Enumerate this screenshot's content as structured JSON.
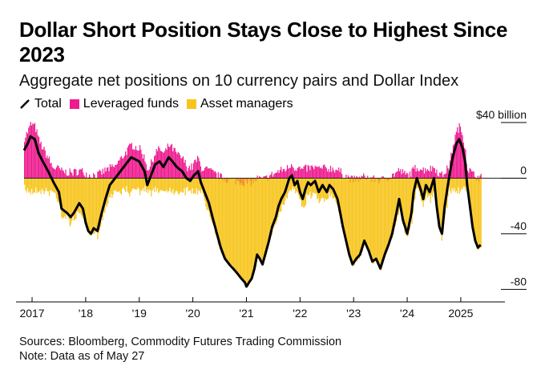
{
  "title": "Dollar Short Position Stays Close to Highest Since 2023",
  "subtitle": "Aggregate net positions on 10 currency pairs and Dollar Index",
  "legend": {
    "total": "Total",
    "leveraged": "Leveraged funds",
    "asset": "Asset managers"
  },
  "footer": {
    "sources": "Sources: Bloomberg, Commodity Futures Trading Commission",
    "note": "Note: Data as of May 27"
  },
  "colors": {
    "total": "#000000",
    "leveraged_pos": "#ee1b8f",
    "leveraged_neg": "#f08a1c",
    "asset": "#f7c51d",
    "zero_line": "#222222",
    "axis": "#000000"
  },
  "chart_data": {
    "type": "bar",
    "title": "Dollar Short Position Stays Close to Highest Since 2023",
    "subtitle": "Aggregate net positions on 10 currency pairs and Dollar Index",
    "ylabel": "$ billion",
    "ylim": [
      -85,
      40
    ],
    "yticks": [
      {
        "value": 40,
        "label": "$40 billion"
      },
      {
        "value": 0,
        "label": "0"
      },
      {
        "value": -40,
        "label": "-40"
      },
      {
        "value": -80,
        "label": "-80"
      }
    ],
    "xlim": [
      2016.85,
      2025.45
    ],
    "xticks": [
      {
        "value": 2017,
        "label": "2017"
      },
      {
        "value": 2018,
        "label": "'18"
      },
      {
        "value": 2019,
        "label": "'19"
      },
      {
        "value": 2020,
        "label": "'20"
      },
      {
        "value": 2021,
        "label": "'21"
      },
      {
        "value": 2022,
        "label": "'22"
      },
      {
        "value": 2023,
        "label": "'23"
      },
      {
        "value": 2024,
        "label": "'24"
      },
      {
        "value": 2025,
        "label": "2025"
      }
    ],
    "series_note": "Stacked weekly bars of leveraged funds and asset managers; line shows total. Values approximated from chart.",
    "total": [
      [
        2016.85,
        20
      ],
      [
        2016.92,
        25
      ],
      [
        2016.97,
        30
      ],
      [
        2017.05,
        28
      ],
      [
        2017.12,
        18
      ],
      [
        2017.2,
        12
      ],
      [
        2017.3,
        5
      ],
      [
        2017.4,
        -3
      ],
      [
        2017.5,
        -10
      ],
      [
        2017.55,
        -22
      ],
      [
        2017.65,
        -25
      ],
      [
        2017.72,
        -28
      ],
      [
        2017.78,
        -25
      ],
      [
        2017.88,
        -18
      ],
      [
        2017.95,
        -22
      ],
      [
        2018.0,
        -32
      ],
      [
        2018.05,
        -38
      ],
      [
        2018.1,
        -40
      ],
      [
        2018.15,
        -36
      ],
      [
        2018.22,
        -38
      ],
      [
        2018.3,
        -25
      ],
      [
        2018.37,
        -15
      ],
      [
        2018.45,
        -5
      ],
      [
        2018.55,
        0
      ],
      [
        2018.65,
        5
      ],
      [
        2018.75,
        10
      ],
      [
        2018.85,
        15
      ],
      [
        2019.0,
        12
      ],
      [
        2019.1,
        5
      ],
      [
        2019.15,
        -5
      ],
      [
        2019.2,
        0
      ],
      [
        2019.3,
        10
      ],
      [
        2019.38,
        12
      ],
      [
        2019.45,
        8
      ],
      [
        2019.55,
        15
      ],
      [
        2019.62,
        12
      ],
      [
        2019.7,
        8
      ],
      [
        2019.8,
        5
      ],
      [
        2019.88,
        0
      ],
      [
        2019.95,
        -2
      ],
      [
        2020.02,
        2
      ],
      [
        2020.1,
        5
      ],
      [
        2020.15,
        -3
      ],
      [
        2020.22,
        -10
      ],
      [
        2020.3,
        -18
      ],
      [
        2020.38,
        -30
      ],
      [
        2020.45,
        -40
      ],
      [
        2020.52,
        -50
      ],
      [
        2020.6,
        -58
      ],
      [
        2020.68,
        -62
      ],
      [
        2020.75,
        -65
      ],
      [
        2020.82,
        -68
      ],
      [
        2020.9,
        -72
      ],
      [
        2020.97,
        -75
      ],
      [
        2021.0,
        -78
      ],
      [
        2021.05,
        -75
      ],
      [
        2021.1,
        -72
      ],
      [
        2021.15,
        -65
      ],
      [
        2021.2,
        -55
      ],
      [
        2021.25,
        -58
      ],
      [
        2021.3,
        -62
      ],
      [
        2021.35,
        -55
      ],
      [
        2021.42,
        -45
      ],
      [
        2021.48,
        -35
      ],
      [
        2021.55,
        -28
      ],
      [
        2021.6,
        -20
      ],
      [
        2021.65,
        -15
      ],
      [
        2021.72,
        -10
      ],
      [
        2021.8,
        0
      ],
      [
        2021.85,
        2
      ],
      [
        2021.9,
        -5
      ],
      [
        2021.95,
        -2
      ],
      [
        2022.0,
        -10
      ],
      [
        2022.05,
        -15
      ],
      [
        2022.1,
        -8
      ],
      [
        2022.15,
        -3
      ],
      [
        2022.2,
        -5
      ],
      [
        2022.28,
        -2
      ],
      [
        2022.35,
        -10
      ],
      [
        2022.42,
        -5
      ],
      [
        2022.5,
        -10
      ],
      [
        2022.55,
        -5
      ],
      [
        2022.62,
        -8
      ],
      [
        2022.7,
        -15
      ],
      [
        2022.75,
        -25
      ],
      [
        2022.8,
        -35
      ],
      [
        2022.86,
        -45
      ],
      [
        2022.92,
        -55
      ],
      [
        2022.98,
        -62
      ],
      [
        2023.05,
        -58
      ],
      [
        2023.12,
        -55
      ],
      [
        2023.2,
        -45
      ],
      [
        2023.28,
        -52
      ],
      [
        2023.35,
        -60
      ],
      [
        2023.42,
        -58
      ],
      [
        2023.5,
        -65
      ],
      [
        2023.58,
        -55
      ],
      [
        2023.65,
        -48
      ],
      [
        2023.72,
        -40
      ],
      [
        2023.8,
        -25
      ],
      [
        2023.85,
        -15
      ],
      [
        2023.92,
        -30
      ],
      [
        2024.0,
        -40
      ],
      [
        2024.08,
        -25
      ],
      [
        2024.12,
        -10
      ],
      [
        2024.18,
        0
      ],
      [
        2024.25,
        -8
      ],
      [
        2024.3,
        -15
      ],
      [
        2024.35,
        -5
      ],
      [
        2024.42,
        -10
      ],
      [
        2024.5,
        0
      ],
      [
        2024.55,
        -20
      ],
      [
        2024.6,
        -35
      ],
      [
        2024.65,
        -40
      ],
      [
        2024.7,
        -20
      ],
      [
        2024.78,
        0
      ],
      [
        2024.85,
        15
      ],
      [
        2024.92,
        25
      ],
      [
        2024.97,
        28
      ],
      [
        2025.03,
        22
      ],
      [
        2025.08,
        12
      ],
      [
        2025.12,
        -5
      ],
      [
        2025.17,
        -20
      ],
      [
        2025.22,
        -35
      ],
      [
        2025.27,
        -45
      ],
      [
        2025.32,
        -50
      ],
      [
        2025.37,
        -48
      ]
    ]
  }
}
